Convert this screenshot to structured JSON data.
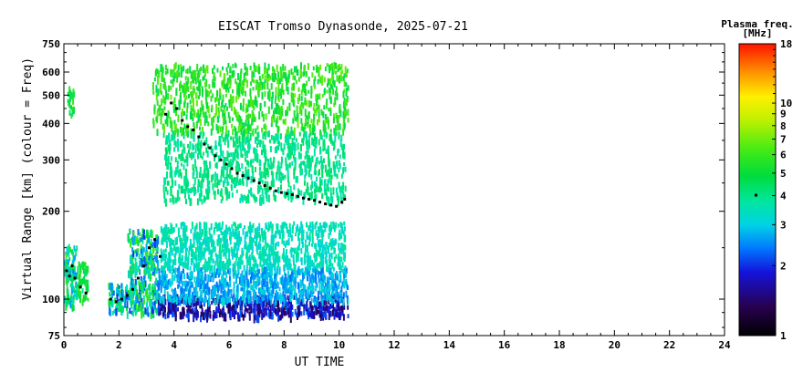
{
  "chart_data": {
    "type": "scatter",
    "title": "EISCAT Tromso Dynasonde, 2025-07-21",
    "xlabel": "UT TIME",
    "ylabel": "Virtual Range [km] (colour = Freq)",
    "x_scale": "linear",
    "y_scale": "log",
    "xlim": [
      0,
      24
    ],
    "ylim": [
      75,
      750
    ],
    "x_ticks": [
      "0",
      "2",
      "4",
      "6",
      "8",
      "10",
      "12",
      "14",
      "16",
      "18",
      "20",
      "22",
      "24"
    ],
    "y_ticks": [
      "75",
      "100",
      "200",
      "300",
      "400",
      "500",
      "600",
      "750"
    ],
    "grid": false,
    "colorbar": {
      "title_line1": "Plasma freq.",
      "title_line2": "[MHz]",
      "scale": "log",
      "range": [
        1,
        18
      ],
      "ticks": [
        "1",
        "2",
        "3",
        "4",
        "5",
        "6",
        "7",
        "8",
        "9",
        "10",
        "18"
      ]
    },
    "echo_regions": [
      {
        "x": [
          0.0,
          0.45
        ],
        "y": [
          95,
          155
        ],
        "freq": [
          2.5,
          6.0
        ]
      },
      {
        "x": [
          0.45,
          0.85
        ],
        "y": [
          100,
          135
        ],
        "freq": [
          4.0,
          6.0
        ]
      },
      {
        "x": [
          0.12,
          0.35
        ],
        "y": [
          430,
          540
        ],
        "freq": [
          4.0,
          6.0
        ]
      },
      {
        "x": [
          1.6,
          2.3
        ],
        "y": [
          90,
          115
        ],
        "freq": [
          2.0,
          5.5
        ]
      },
      {
        "x": [
          2.3,
          3.4
        ],
        "y": [
          90,
          175
        ],
        "freq": [
          2.0,
          6.5
        ]
      },
      {
        "x": [
          3.4,
          10.3
        ],
        "y": [
          88,
          104
        ],
        "freq": [
          1.3,
          2.3
        ]
      },
      {
        "x": [
          3.4,
          10.3
        ],
        "y": [
          100,
          130
        ],
        "freq": [
          2.3,
          3.3
        ]
      },
      {
        "x": [
          3.5,
          10.2
        ],
        "y": [
          130,
          185
        ],
        "freq": [
          3.0,
          4.0
        ]
      },
      {
        "x": [
          3.6,
          10.2
        ],
        "y": [
          220,
          380
        ],
        "freq": [
          3.5,
          4.6
        ]
      },
      {
        "x": [
          3.2,
          10.3
        ],
        "y": [
          380,
          650
        ],
        "freq": [
          4.5,
          7.0
        ]
      }
    ],
    "trace_points": {
      "x": [
        0.1,
        0.2,
        0.3,
        0.4,
        0.6,
        0.8,
        1.7,
        1.9,
        2.1,
        2.3,
        2.5,
        2.7,
        2.9,
        3.1,
        3.3,
        3.5,
        3.7,
        3.9,
        4.1,
        4.3,
        4.5,
        4.7,
        4.9,
        5.1,
        5.3,
        5.5,
        5.7,
        5.9,
        6.1,
        6.3,
        6.5,
        6.7,
        6.9,
        7.1,
        7.3,
        7.5,
        7.7,
        7.9,
        8.1,
        8.3,
        8.5,
        8.7,
        8.9,
        9.1,
        9.3,
        9.5,
        9.7,
        9.9,
        10.1,
        10.2
      ],
      "y": [
        125,
        120,
        130,
        118,
        110,
        105,
        100,
        98,
        100,
        103,
        108,
        118,
        130,
        150,
        160,
        140,
        430,
        470,
        450,
        410,
        390,
        380,
        360,
        340,
        330,
        310,
        300,
        290,
        280,
        270,
        265,
        260,
        255,
        250,
        245,
        240,
        235,
        232,
        230,
        228,
        225,
        222,
        220,
        218,
        215,
        212,
        210,
        208,
        215,
        220
      ]
    }
  }
}
